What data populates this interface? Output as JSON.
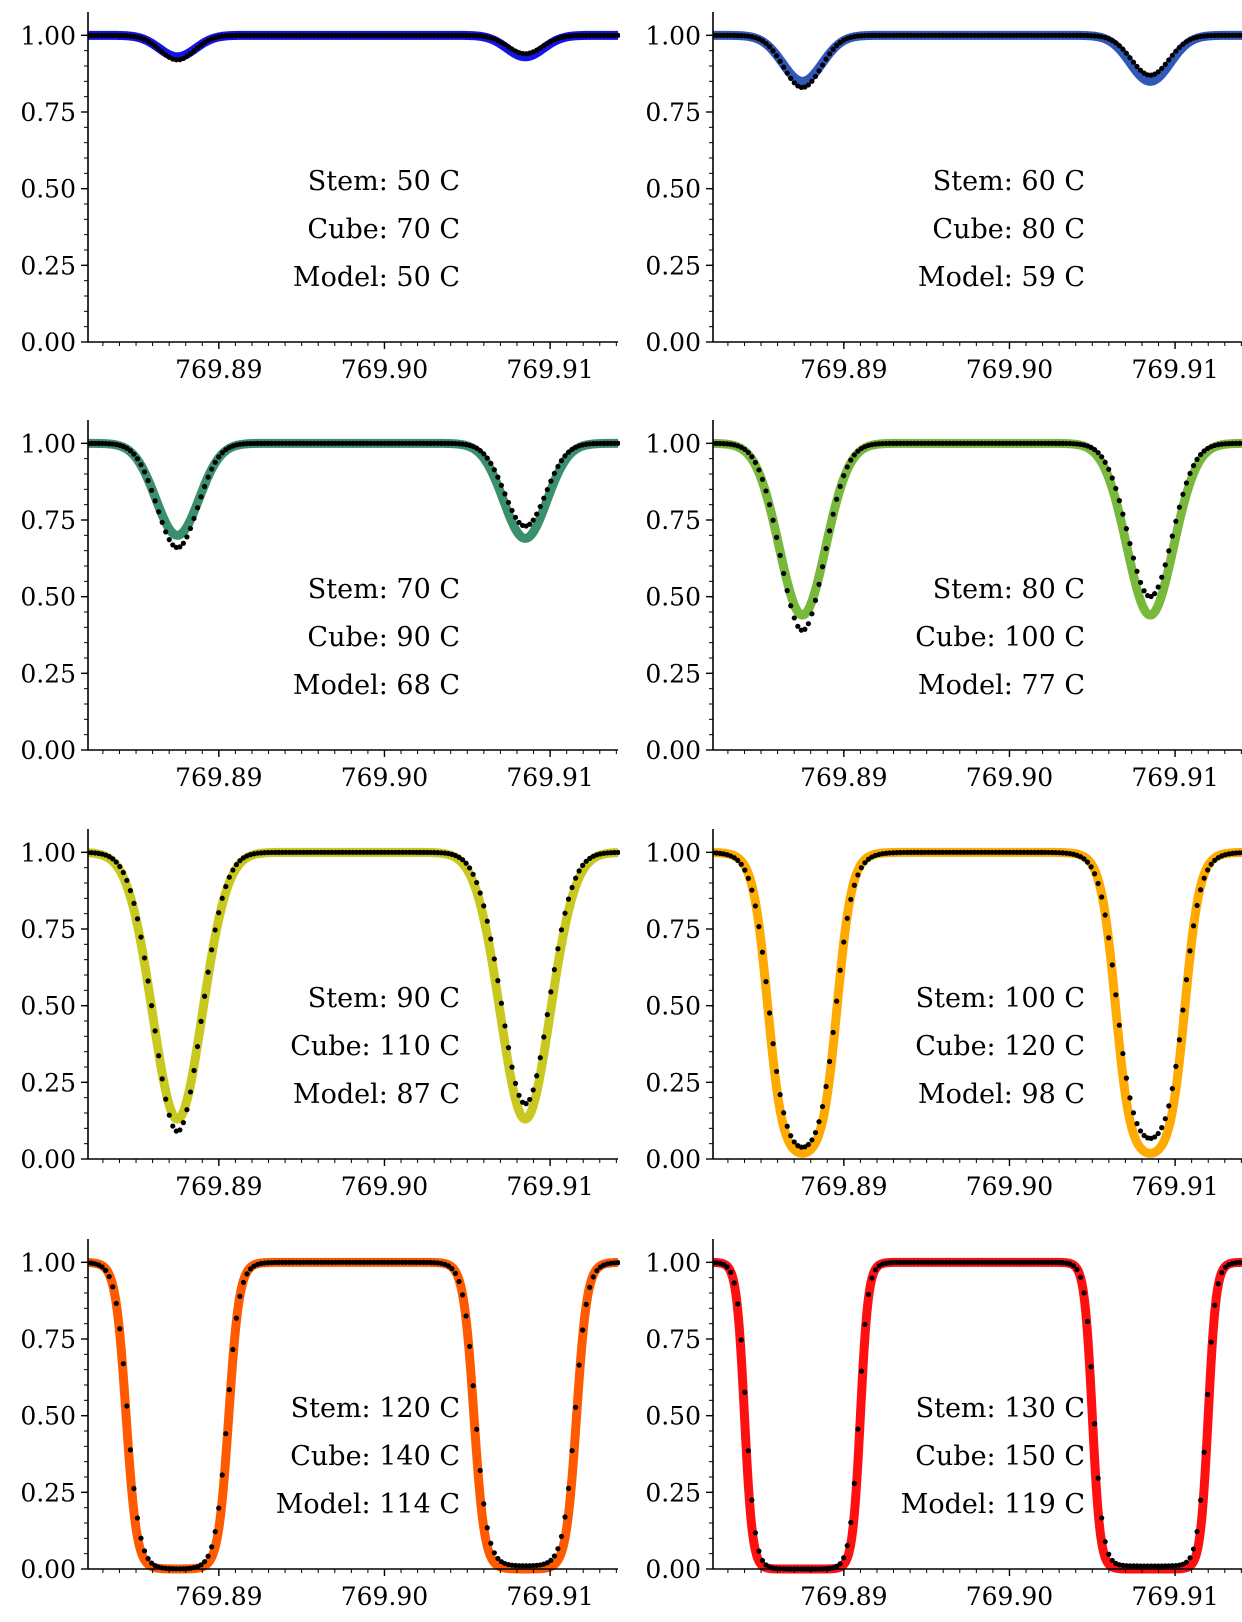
{
  "chart_data": [
    {
      "type": "line",
      "stem": "Stem:  50 C",
      "cube": "Cube:  70 C",
      "model": "Model:  50 C",
      "color": "#1414e6",
      "series": [
        {
          "values": [
            0.93,
            0.93
          ]
        },
        {
          "values": [
            0.92,
            0.94
          ]
        }
      ]
    },
    {
      "type": "line",
      "stem": "Stem:  60 C",
      "cube": "Cube:  80 C",
      "model": "Model:  59 C",
      "color": "#2f58b8",
      "series": [
        {
          "values": [
            0.85,
            0.85
          ]
        },
        {
          "values": [
            0.83,
            0.87
          ]
        }
      ]
    },
    {
      "type": "line",
      "stem": "Stem:  70 C",
      "cube": "Cube:  90 C",
      "model": "Model:  68 C",
      "color": "#3a8f6d",
      "series": [
        {
          "values": [
            0.7,
            0.69
          ]
        },
        {
          "values": [
            0.66,
            0.73
          ]
        }
      ]
    },
    {
      "type": "line",
      "stem": "Stem:  80 C",
      "cube": "Cube:  100 C",
      "model": "Model:  77 C",
      "color": "#78b83a",
      "series": [
        {
          "values": [
            0.44,
            0.44
          ]
        },
        {
          "values": [
            0.39,
            0.5
          ]
        }
      ]
    },
    {
      "type": "line",
      "stem": "Stem:  90 C",
      "cube": "Cube:  110 C",
      "model": "Model:  87 C",
      "color": "#c8c81e",
      "series": [
        {
          "values": [
            0.13,
            0.13
          ]
        },
        {
          "values": [
            0.09,
            0.18
          ]
        }
      ]
    },
    {
      "type": "line",
      "stem": "Stem:  100 C",
      "cube": "Cube:  120 C",
      "model": "Model:  98 C",
      "color": "#ffaa00",
      "series": [
        {
          "values": [
            0.0,
            0.0
          ]
        },
        {
          "values": [
            0.0,
            0.03
          ]
        }
      ]
    },
    {
      "type": "line",
      "stem": "Stem:  120 C",
      "cube": "Cube:  140 C",
      "model": "Model:  114 C",
      "color": "#ff5a00",
      "series": [
        {
          "values": [
            0.0,
            0.0
          ]
        },
        {
          "values": [
            0.0,
            0.01
          ]
        }
      ]
    },
    {
      "type": "line",
      "stem": "Stem:  130 C",
      "cube": "Cube:  150 C",
      "model": "Model:  119 C",
      "color": "#ff1010",
      "series": [
        {
          "values": [
            0.0,
            0.0
          ]
        },
        {
          "values": [
            0.0,
            0.01
          ]
        }
      ]
    }
  ],
  "axes": {
    "x_ticks": [
      "769.89",
      "769.90",
      "769.91"
    ],
    "y_ticks": [
      "0.00",
      "0.25",
      "0.50",
      "0.75",
      "1.00"
    ],
    "xlim": [
      769.8821,
      769.9141
    ],
    "ylim": [
      0,
      1.05
    ]
  }
}
